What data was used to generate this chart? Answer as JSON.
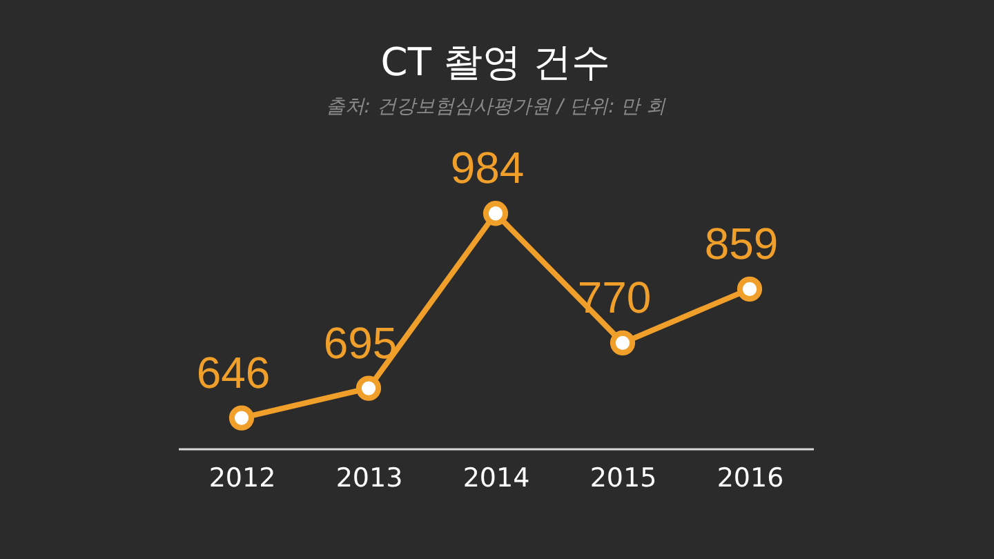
{
  "chart_data": {
    "type": "line",
    "title": "CT 촬영 건수",
    "subtitle": "출처: 건강보험심사평가원 / 단위: 만 회",
    "categories": [
      "2012",
      "2013",
      "2014",
      "2015",
      "2016"
    ],
    "series": [
      {
        "color": "#f0a02a",
        "values": [
          646,
          695,
          984,
          770,
          859
        ]
      }
    ],
    "data_labels": true,
    "tick_labels": "x",
    "grid": false,
    "marker": "circle",
    "line_style": "solid"
  }
}
